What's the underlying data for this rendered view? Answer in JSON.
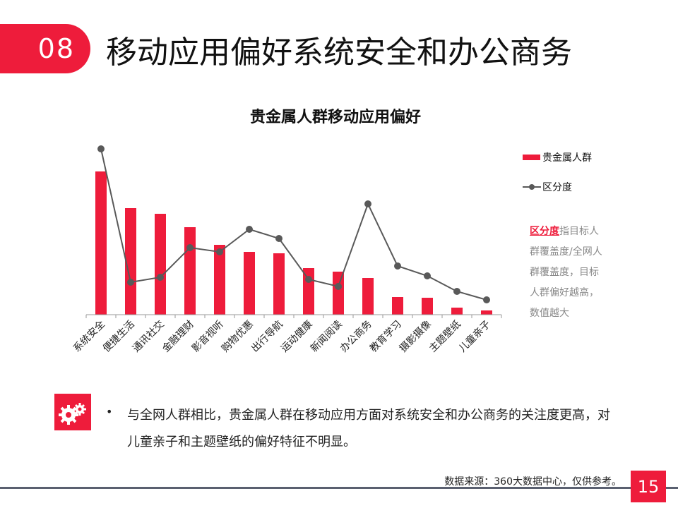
{
  "header": {
    "section_number": "08",
    "title": "移动应用偏好系统安全和办公商务"
  },
  "chart_data": {
    "type": "bar+line",
    "title": "贵金属人群移动应用偏好",
    "categories": [
      "系统安全",
      "便捷生活",
      "通讯社交",
      "金融理财",
      "影音视听",
      "购物优惠",
      "出行导航",
      "运动健康",
      "新闻阅读",
      "办公商务",
      "教育学习",
      "摄影摄像",
      "主题壁纸",
      "儿童亲子"
    ],
    "series": [
      {
        "name": "贵金属人群",
        "type": "bar",
        "color": "#ee1c3b",
        "values": [
          203,
          151,
          143,
          124,
          99,
          89,
          87,
          66,
          61,
          52,
          25,
          24,
          10,
          6
        ]
      },
      {
        "name": "区分度",
        "type": "line",
        "color": "#595959",
        "values": [
          235,
          46,
          53,
          95,
          89,
          121,
          108,
          50,
          40,
          157,
          69,
          55,
          33,
          21
        ]
      }
    ],
    "ylim": [
      0,
      250
    ],
    "y_axis_shown": false,
    "grid": false,
    "legend": "right"
  },
  "note": {
    "highlight": "区分度",
    "text": "指目标人群覆盖度/全网人群覆盖度，目标人群偏好越高，数值越大"
  },
  "summary": {
    "icon": "gears-icon",
    "bullet": "•",
    "text": "与全网人群相比，贵金属人群在移动应用方面对系统安全和办公商务的关注度更高，对儿童亲子和主题壁纸的偏好特征不明显。"
  },
  "footer": {
    "source": "数据来源：360大数据中心，仅供参考。",
    "page": "15"
  },
  "colors": {
    "accent": "#ee1c3b",
    "line": "#595959",
    "footer_line": "#5a6070"
  }
}
